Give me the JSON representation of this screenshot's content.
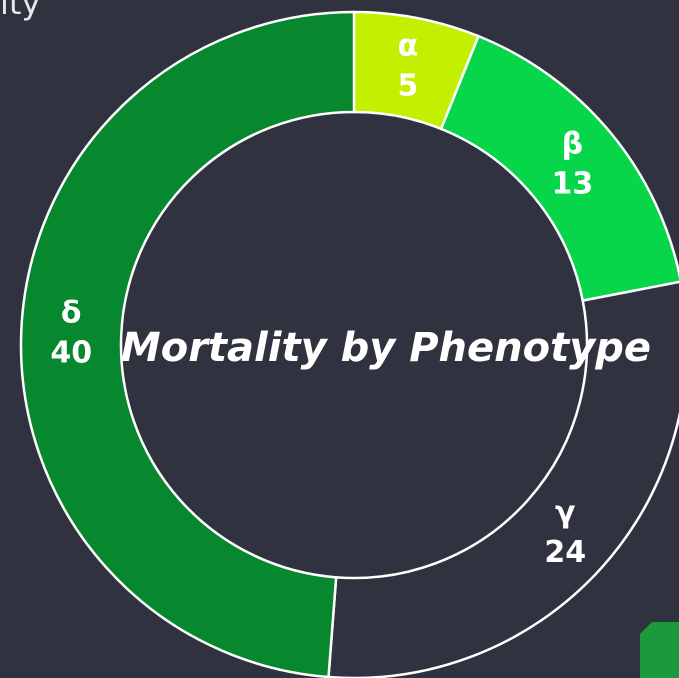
{
  "slide_title_fragment": "ity",
  "chart_data": {
    "type": "donut",
    "title": "Mortality by Phenotype",
    "categories": [
      "α",
      "β",
      "γ",
      "δ"
    ],
    "values": [
      5,
      13,
      24,
      40
    ],
    "colors": [
      "#c3f000",
      "#07d64a",
      "#30333f",
      "#07872e"
    ]
  }
}
